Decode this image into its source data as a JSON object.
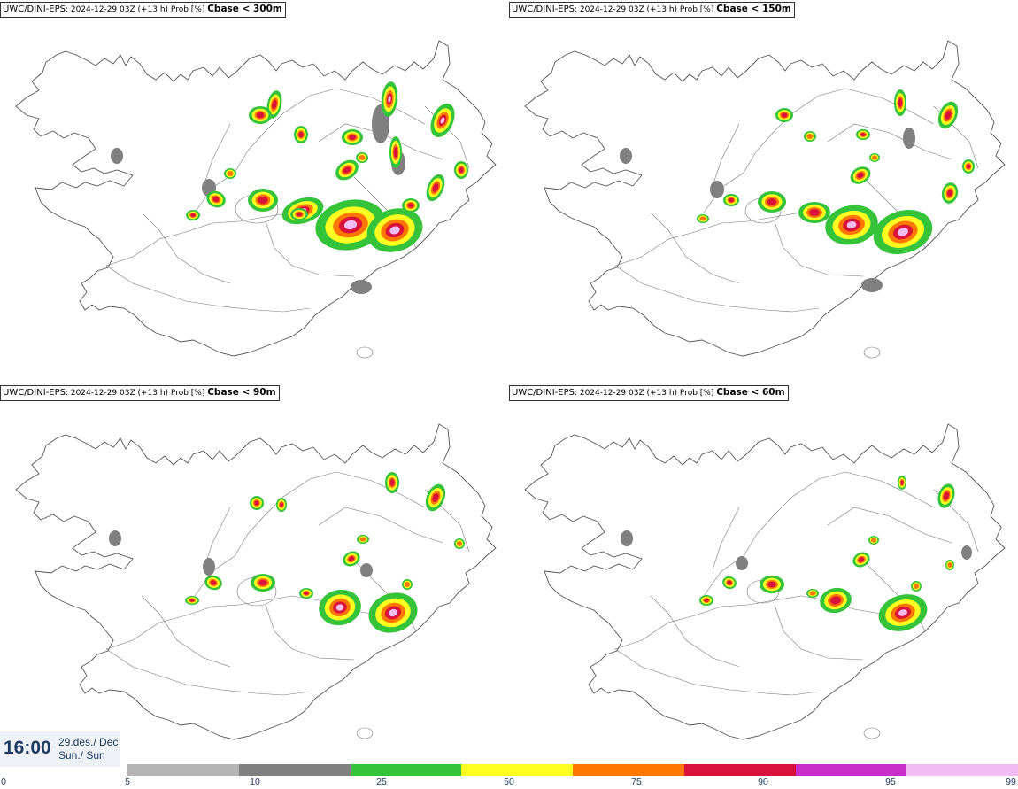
{
  "panels": [
    {
      "model": "UWC/DINI-EPS",
      "info": ": 2024-12-29 03Z (+13 h) Prob [%] ",
      "criterion": "Cbase < 300m"
    },
    {
      "model": "UWC/DINI-EPS",
      "info": ": 2024-12-29 03Z (+13 h) Prob [%] ",
      "criterion": "Cbase < 150m"
    },
    {
      "model": "UWC/DINI-EPS",
      "info": ": 2024-12-29 03Z (+13 h) Prob [%] ",
      "criterion": "Cbase < 90m"
    },
    {
      "model": "UWC/DINI-EPS",
      "info": ": 2024-12-29 03Z (+13 h) Prob [%] ",
      "criterion": "Cbase < 60m"
    }
  ],
  "time": {
    "clock": "16:00",
    "date": "29.des./ Dec",
    "day": "Sun./ Sun"
  },
  "legend": {
    "ticks": [
      "0",
      "5",
      "10",
      "25",
      "50",
      "75",
      "90",
      "95",
      "99"
    ],
    "colors": [
      "#b4b4b4",
      "#808080",
      "#35c33a",
      "#ffff22",
      "#ff7700",
      "#d9123c",
      "#c82ec8",
      "#f2bdf2"
    ]
  },
  "colors": {
    "coast": "#555555",
    "borders": "#777777"
  }
}
